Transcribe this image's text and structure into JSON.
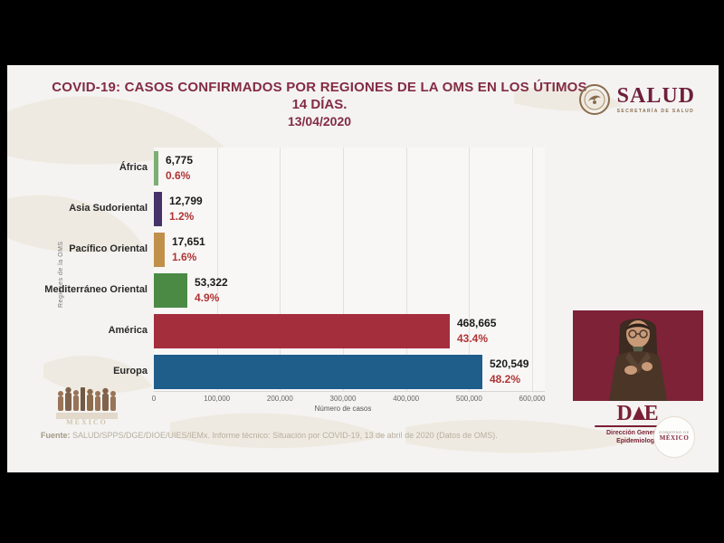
{
  "header": {
    "title_line1": "COVID-19: CASOS CONFIRMADOS POR REGIONES DE LA OMS EN LOS ÚTIMOS",
    "title_line2": "14 DÍAS.",
    "title_line3": "13/04/2020"
  },
  "salud_logo": {
    "name": "SALUD",
    "subtitle": "SECRETARÍA DE SALUD"
  },
  "chart_data": {
    "type": "bar",
    "orientation": "horizontal",
    "title": "COVID-19: Casos confirmados por regiones de la OMS en los útimos 14 días (13/04/2020)",
    "categories": [
      "África",
      "Asia Sudoriental",
      "Pacífico Oriental",
      "Mediterráneo Oriental",
      "América",
      "Europa"
    ],
    "values": [
      6775,
      12799,
      17651,
      53322,
      468665,
      520549
    ],
    "value_labels": [
      "6,775",
      "12,799",
      "17,651",
      "53,322",
      "468,665",
      "520,549"
    ],
    "pct_labels": [
      "0.6%",
      "1.2%",
      "1.6%",
      "4.9%",
      "43.4%",
      "48.2%"
    ],
    "bar_colors": [
      "#7dae73",
      "#453266",
      "#c0904b",
      "#4a8a45",
      "#a52e3d",
      "#1f5d8b"
    ],
    "xlabel": "Número de casos",
    "ylabel": "Regiones de la OMS",
    "xlim": [
      0,
      600000
    ],
    "x_ticks": [
      0,
      100000,
      200000,
      300000,
      400000,
      500000,
      600000
    ],
    "x_tick_labels": [
      "0",
      "100,000",
      "200,000",
      "300,000",
      "400,000",
      "500,000",
      "600,000"
    ],
    "grid": true,
    "legend": false,
    "value_color": "#1b1b1b",
    "pct_color": "#b03434"
  },
  "dge_logo": {
    "letter_d": "D",
    "letter_e": "E",
    "subtitle_line1": "Dirección General de",
    "subtitle_line2": "Epidemiología"
  },
  "footer": {
    "label": "Fuente:",
    "text": " SALUD/SPPS/DGE/DIOE/UIES/IEMx. Informe técnico: Situación por COVID-19, 13 de abril de 2020 (Datos de OMS)."
  },
  "seal": {
    "line1": "GOBIERNO DE",
    "line2": "MÉXICO"
  },
  "colors": {
    "title_maroon": "#832c44",
    "slide_bg": "#f4f3f1",
    "interpreter_bg": "#7d2237",
    "dge_maroon": "#7a1f35"
  }
}
